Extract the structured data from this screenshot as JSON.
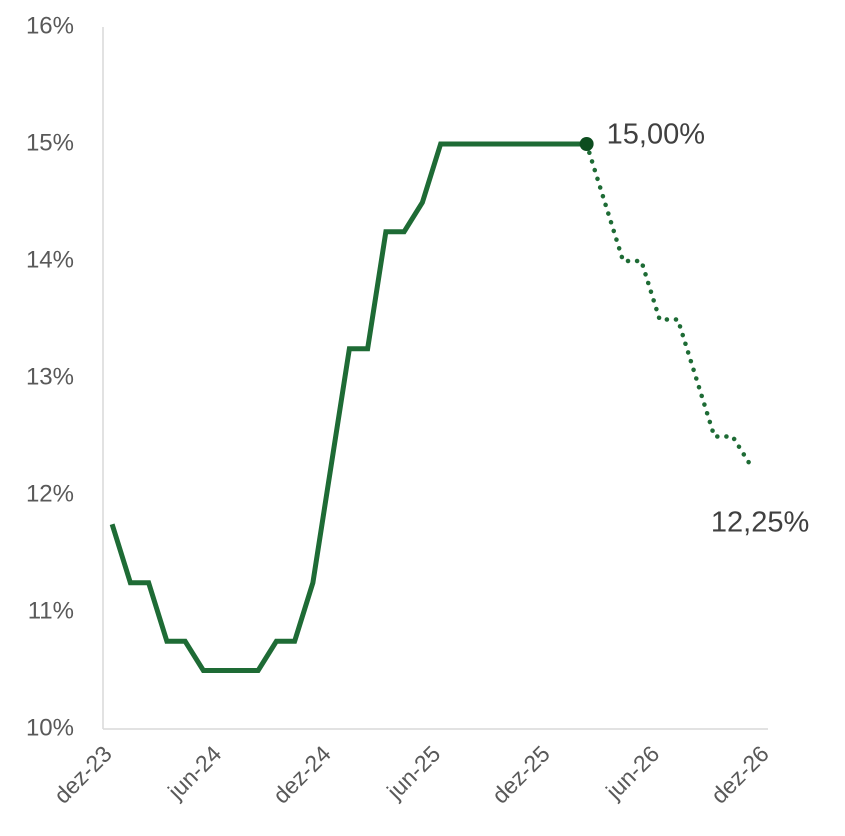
{
  "chart_data": {
    "type": "line",
    "categories": [
      "dez-23",
      null,
      null,
      null,
      null,
      null,
      "jun-24",
      null,
      null,
      null,
      null,
      null,
      "dez-24",
      null,
      null,
      null,
      null,
      null,
      "jun-25",
      null,
      null,
      null,
      null,
      null,
      "dez-25",
      null,
      null,
      null,
      null,
      null,
      "jun-26",
      null,
      null,
      null,
      null,
      null,
      "dez-26"
    ],
    "series": [
      {
        "color": "#1e6b35",
        "style": "solid",
        "values": [
          11.75,
          11.25,
          11.25,
          10.75,
          10.75,
          10.5,
          10.5,
          10.5,
          10.5,
          10.75,
          10.75,
          11.25,
          12.25,
          13.25,
          13.25,
          14.25,
          14.25,
          14.5,
          15,
          15,
          15,
          15,
          15,
          15,
          15,
          15,
          15,
          null,
          null,
          null,
          null,
          null,
          null,
          null,
          null,
          null,
          null
        ]
      },
      {
        "color": "#1e6b35",
        "style": "dotted",
        "values": [
          null,
          null,
          null,
          null,
          null,
          null,
          null,
          null,
          null,
          null,
          null,
          null,
          null,
          null,
          null,
          null,
          null,
          null,
          null,
          null,
          null,
          null,
          null,
          null,
          null,
          null,
          15,
          14.5,
          14,
          14,
          13.5,
          13.5,
          13,
          12.5,
          12.5,
          12.25,
          null
        ]
      }
    ],
    "marker": {
      "index": 26,
      "color": "#0d4d1f"
    },
    "annotations": [
      {
        "text": "15,00%",
        "index": 26,
        "value": 15
      },
      {
        "text": "12,25%",
        "index": 35,
        "value": 12.25
      }
    ],
    "ylim": [
      10,
      16
    ],
    "yticks": [
      {
        "value": 10,
        "label": "10%"
      },
      {
        "value": 11,
        "label": "11%"
      },
      {
        "value": 12,
        "label": "12%"
      },
      {
        "value": 13,
        "label": "13%"
      },
      {
        "value": 14,
        "label": "14%"
      },
      {
        "value": 15,
        "label": "15%"
      },
      {
        "value": 16,
        "label": "16%"
      }
    ],
    "grid": false
  }
}
